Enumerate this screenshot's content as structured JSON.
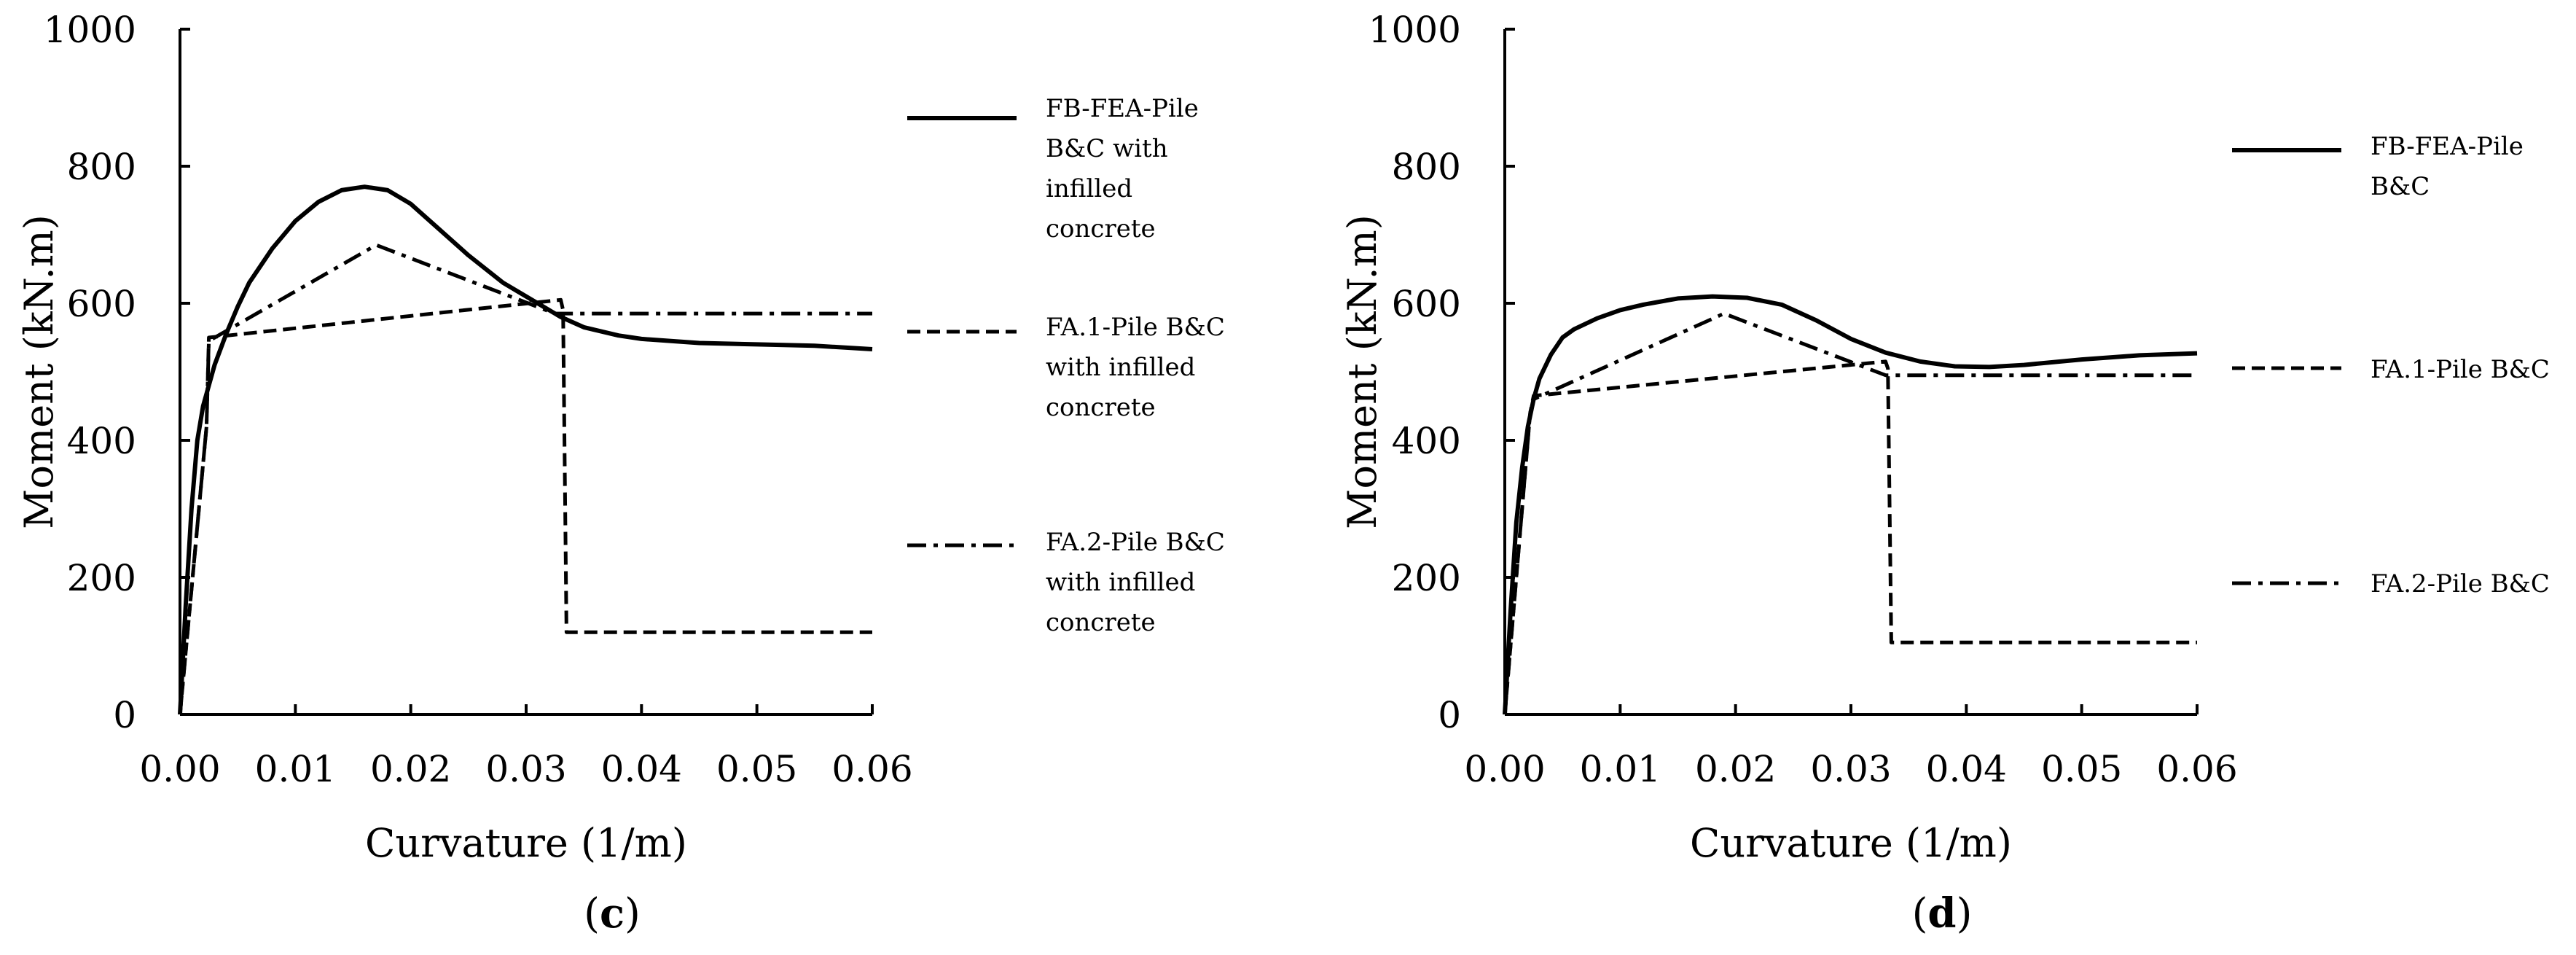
{
  "chart_data": [
    {
      "type": "line",
      "panel_label": "c",
      "xlabel": "Curvature (1/m)",
      "ylabel": "Moment (kN.m)",
      "xlim": [
        0,
        0.06
      ],
      "ylim": [
        0,
        1000
      ],
      "xticks": [
        "0.00",
        "0.01",
        "0.02",
        "0.03",
        "0.04",
        "0.05",
        "0.06"
      ],
      "yticks": [
        "0",
        "200",
        "400",
        "600",
        "800",
        "1000"
      ],
      "grid": false,
      "legend_position": "right",
      "series": [
        {
          "name": "FB-FEA-Pile B&C with infilled concrete",
          "legend_lines": [
            "FB-FEA-Pile",
            "B&C with",
            "infilled",
            "concrete"
          ],
          "style": "solid",
          "x": [
            0,
            0.0005,
            0.001,
            0.0015,
            0.002,
            0.003,
            0.004,
            0.005,
            0.006,
            0.008,
            0.01,
            0.012,
            0.014,
            0.016,
            0.018,
            0.02,
            0.022,
            0.025,
            0.028,
            0.031,
            0.033,
            0.035,
            0.038,
            0.04,
            0.045,
            0.05,
            0.055,
            0.06
          ],
          "y": [
            0,
            160,
            300,
            400,
            450,
            510,
            555,
            595,
            630,
            680,
            720,
            748,
            765,
            770,
            765,
            745,
            715,
            670,
            630,
            600,
            580,
            565,
            553,
            548,
            542,
            540,
            538,
            533
          ]
        },
        {
          "name": "FA.1-Pile B&C with infilled concrete",
          "legend_lines": [
            "FA.1-Pile B&C",
            "with infilled",
            "concrete"
          ],
          "style": "dashed",
          "x": [
            0,
            0.0023,
            0.0025,
            0.033,
            0.0332,
            0.0335,
            0.06
          ],
          "y": [
            0,
            420,
            550,
            605,
            590,
            120,
            120
          ]
        },
        {
          "name": "FA.2-Pile B&C with infilled concrete",
          "legend_lines": [
            "FA.2-Pile B&C",
            "with infilled",
            "concrete"
          ],
          "style": "dashdot",
          "x": [
            0,
            0.0023,
            0.0025,
            0.017,
            0.0325,
            0.06
          ],
          "y": [
            0,
            420,
            545,
            685,
            585,
            585
          ]
        }
      ]
    },
    {
      "type": "line",
      "panel_label": "d",
      "xlabel": "Curvature (1/m)",
      "ylabel": "Moment (kN.m)",
      "xlim": [
        0,
        0.06
      ],
      "ylim": [
        0,
        1000
      ],
      "xticks": [
        "0.00",
        "0.01",
        "0.02",
        "0.03",
        "0.04",
        "0.05",
        "0.06"
      ],
      "yticks": [
        "0",
        "200",
        "400",
        "600",
        "800",
        "1000"
      ],
      "grid": false,
      "legend_position": "right",
      "series": [
        {
          "name": "FB-FEA-Pile B&C",
          "legend_lines": [
            "FB-FEA-Pile",
            "B&C"
          ],
          "style": "solid",
          "x": [
            0,
            0.0005,
            0.001,
            0.0015,
            0.002,
            0.0025,
            0.003,
            0.004,
            0.005,
            0.006,
            0.008,
            0.01,
            0.012,
            0.015,
            0.018,
            0.021,
            0.024,
            0.027,
            0.03,
            0.033,
            0.036,
            0.039,
            0.042,
            0.045,
            0.05,
            0.055,
            0.06
          ],
          "y": [
            0,
            150,
            280,
            360,
            420,
            460,
            490,
            525,
            550,
            562,
            578,
            590,
            598,
            607,
            610,
            608,
            598,
            575,
            548,
            528,
            515,
            508,
            507,
            510,
            518,
            524,
            527
          ]
        },
        {
          "name": "FA.1-Pile B&C",
          "legend_lines": [
            "FA.1-Pile B&C"
          ],
          "style": "dashed",
          "x": [
            0,
            0.0022,
            0.0025,
            0.033,
            0.0332,
            0.0335,
            0.06
          ],
          "y": [
            0,
            440,
            465,
            515,
            505,
            105,
            105
          ]
        },
        {
          "name": "FA.2-Pile B&C",
          "legend_lines": [
            "FA.2-Pile B&C"
          ],
          "style": "dashdot",
          "x": [
            0,
            0.0022,
            0.0025,
            0.019,
            0.033,
            0.06
          ],
          "y": [
            0,
            440,
            460,
            585,
            495,
            495
          ]
        }
      ]
    }
  ]
}
